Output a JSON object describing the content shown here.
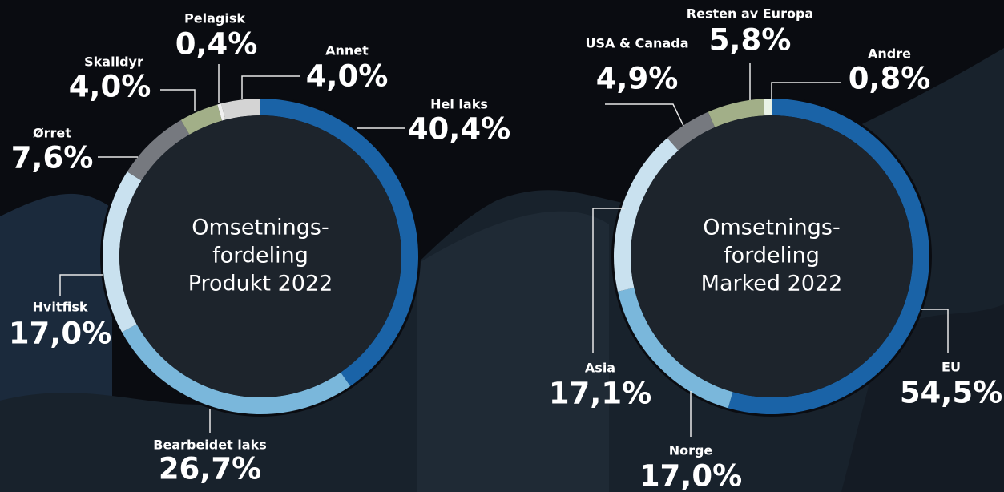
{
  "chart_data": [
    {
      "type": "pie",
      "title": [
        "Omsetnings-",
        "fordeling",
        "Produkt 2022"
      ],
      "categories": [
        "Hel laks",
        "Bearbeidet laks",
        "Hvitfisk",
        "Ørret",
        "Skalldyr",
        "Pelagisk",
        "Annet"
      ],
      "values": [
        40.4,
        26.7,
        17.0,
        7.6,
        4.0,
        0.4,
        4.0
      ],
      "value_labels": [
        "40,4%",
        "26,7%",
        "17,0%",
        "7,6%",
        "4,0%",
        "0,4%",
        "4,0%"
      ],
      "colors": [
        "#1a63a7",
        "#7ab7db",
        "#c9e1ef",
        "#76797f",
        "#a2af88",
        "#f0f0f0",
        "#d4d4d4"
      ]
    },
    {
      "type": "pie",
      "title": [
        "Omsetnings-",
        "fordeling",
        "Marked 2022"
      ],
      "categories": [
        "EU",
        "Norge",
        "Asia",
        "USA & Canada",
        "Resten av Europa",
        "Andre"
      ],
      "values": [
        54.5,
        17.0,
        17.1,
        4.9,
        5.8,
        0.8
      ],
      "value_labels": [
        "54,5%",
        "17,0%",
        "17,1%",
        "4,9%",
        "5,8%",
        "0,8%"
      ],
      "colors": [
        "#1a63a7",
        "#7ab7db",
        "#c9e1ef",
        "#76797f",
        "#a2af88",
        "#e9f2e6"
      ]
    }
  ]
}
